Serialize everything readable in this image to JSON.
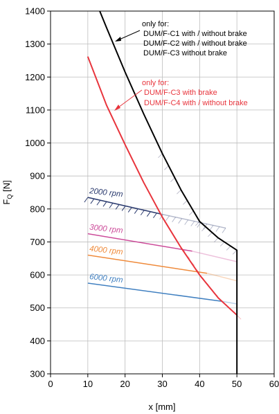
{
  "chart_data": {
    "type": "line",
    "title": "",
    "xlabel": "x [mm]",
    "ylabel_main": "F",
    "ylabel_sub": "Q",
    "ylabel_unit": " [N]",
    "xlim": [
      0,
      60
    ],
    "ylim": [
      300,
      1400
    ],
    "xticks": [
      0,
      10,
      20,
      30,
      40,
      50,
      60
    ],
    "yticks": [
      300,
      400,
      500,
      600,
      700,
      800,
      900,
      1000,
      1100,
      1200,
      1300,
      1400
    ],
    "x_tick_labels": [
      "0",
      "10",
      "20",
      "30",
      "40",
      "50",
      "60"
    ],
    "y_tick_labels": [
      "300",
      "400",
      "500",
      "600",
      "700",
      "800",
      "900",
      "1000",
      "1100",
      "1200",
      "1300",
      "1400"
    ],
    "grid": true,
    "black_curve": {
      "color": "#000000",
      "x": [
        13.2,
        15,
        20,
        25,
        30,
        35,
        40,
        45,
        50,
        50
      ],
      "y": [
        1400,
        1350,
        1215,
        1088,
        968,
        858,
        762,
        712,
        675,
        300
      ]
    },
    "red_curve": {
      "color": "#e8343c",
      "x": [
        10,
        15,
        20,
        25,
        30,
        35,
        40,
        45,
        50
      ],
      "y": [
        1262,
        1115,
        995,
        880,
        775,
        683,
        600,
        530,
        478
      ]
    },
    "speed_lines": [
      {
        "label": "2000 rpm",
        "color": "#2a3a6e",
        "x": [
          10,
          29.5
        ],
        "y": [
          835,
          785
        ],
        "fade_x": [
          29.5,
          47
        ],
        "fade_y": [
          785,
          742
        ]
      },
      {
        "label": "3000 rpm",
        "color": "#cc4a99",
        "x": [
          10,
          38
        ],
        "y": [
          725,
          672
        ],
        "fade_x": [
          38,
          50
        ],
        "fade_y": [
          672,
          640
        ]
      },
      {
        "label": "4000 rpm",
        "color": "#ef8a3a",
        "x": [
          10,
          42
        ],
        "y": [
          660,
          605
        ],
        "fade_x": [
          42,
          50
        ],
        "fade_y": [
          605,
          582
        ]
      },
      {
        "label": "6000 rpm",
        "color": "#3f7fc0",
        "x": [
          10,
          46
        ],
        "y": [
          575,
          520
        ],
        "fade_x": [
          46,
          50
        ],
        "fade_y": [
          520,
          512
        ]
      }
    ],
    "annotation_black": {
      "heading": "only for:",
      "lines": [
        "DUM/F-C1 with / without brake",
        "DUM/F-C2  with / without brake",
        "DUM/F-C3 without brake"
      ],
      "color": "#000000"
    },
    "annotation_red": {
      "heading": "only for:",
      "lines": [
        "DUM/F-C3 with brake",
        "DUM/F-C4  with / without brake"
      ],
      "color": "#e8343c"
    }
  }
}
